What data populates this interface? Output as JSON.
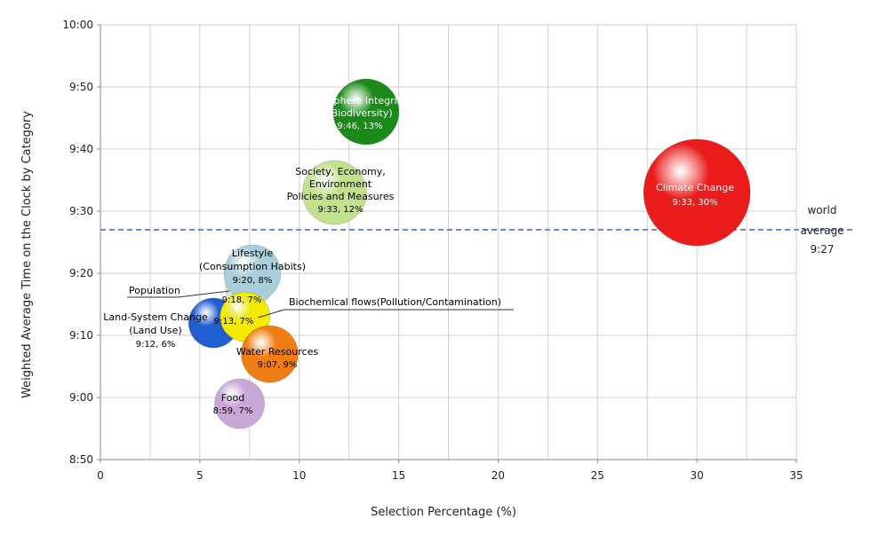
{
  "chart_data": {
    "type": "scatter",
    "xlabel": "Selection Percentage (%)",
    "ylabel": "Weighted Average Time on the Clock by Category",
    "xlim": [
      0,
      35
    ],
    "ylim_minutes": [
      530,
      600
    ],
    "x_ticks": [
      0,
      5,
      10,
      15,
      20,
      25,
      30,
      35
    ],
    "x_tick_labels": [
      "0",
      "5",
      "10",
      "15",
      "20",
      "25",
      "30",
      "35"
    ],
    "y_ticks_minutes": [
      530,
      540,
      550,
      560,
      570,
      580,
      590,
      600
    ],
    "y_tick_labels": [
      "8:50",
      "9:00",
      "9:10",
      "9:20",
      "9:30",
      "9:40",
      "9:50",
      "10:00"
    ],
    "grid": true,
    "reference_line": {
      "time": "9:27",
      "minutes": 567,
      "label_lines": [
        "world",
        "average",
        "9:27"
      ]
    },
    "points": [
      {
        "x": 6,
        "time": "9:12",
        "minutes": 552,
        "color": "#1f5fd1",
        "text_color": "#000000",
        "label_lines": [
          "Land-System Change",
          "(Land Use)",
          "9:12, 6%"
        ]
      },
      {
        "x": 7,
        "time": "9:18",
        "minutes": 558,
        "color": "#d7ebcf",
        "text_color": "#000000",
        "label_lines": [
          "Population",
          "9:18, 7%"
        ]
      },
      {
        "x": 7,
        "time": "8:59",
        "minutes": 539,
        "color": "#c9a8d8",
        "text_color": "#000000",
        "label_lines": [
          "Food",
          "8:59, 7%"
        ]
      },
      {
        "x": 8,
        "time": "9:20",
        "minutes": 560,
        "color": "#a9cfdc",
        "text_color": "#000000",
        "label_lines": [
          "Lifestyle",
          "(Consumption Habits)",
          "9:20, 8%"
        ]
      },
      {
        "x": 7,
        "time": "9:13",
        "minutes": 553,
        "color": "#f2ea00",
        "text_color": "#000000",
        "label_lines": [
          "Biochemical flows(Pollution/Contamination)",
          "9:13, 7%"
        ]
      },
      {
        "x": 9,
        "time": "9:07",
        "minutes": 547,
        "color": "#f07d14",
        "text_color": "#000000",
        "label_lines": [
          "Water Resources",
          "9:07, 9%"
        ]
      },
      {
        "x": 12,
        "time": "9:33",
        "minutes": 573,
        "color": "#c3e18d",
        "text_color": "#000000",
        "label_lines": [
          "Society, Economy,",
          "Environment",
          "Policies and Measures",
          "9:33, 12%"
        ]
      },
      {
        "x": 13,
        "time": "9:46",
        "minutes": 586,
        "color": "#1a8a1a",
        "text_color": "#ffffff",
        "label_lines": [
          "Biosphere Integrity",
          "(Biodiversity)",
          "9:46, 13%"
        ]
      },
      {
        "x": 30,
        "time": "9:33",
        "minutes": 573,
        "color": "#ea1c1c",
        "text_color": "#ffffff",
        "label_lines": [
          "Climate Change",
          "9:33, 30%"
        ]
      }
    ]
  }
}
